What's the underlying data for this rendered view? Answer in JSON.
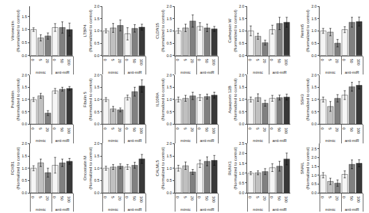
{
  "chart_data": [
    {
      "type": "bar",
      "ylabel": "Vitronectin\n(Normalized to control)",
      "categories": [
        "0",
        "5",
        "20",
        "0",
        "50",
        "100"
      ],
      "groups": [
        "mimic",
        "mimic",
        "mimic",
        "anti-miR",
        "anti-miR",
        "anti-miR"
      ],
      "values": [
        1.0,
        0.68,
        0.75,
        1.08,
        1.08,
        1.0
      ],
      "errors": [
        0.07,
        0.12,
        0.12,
        0.15,
        0.22,
        0.25
      ],
      "colors": [
        "#f5f5f5",
        "#c0c0c0",
        "#808080",
        "#f5f5f5",
        "#808080",
        "#383838"
      ],
      "ylim": [
        0,
        1.9
      ],
      "yticks": [
        {
          "value": 0,
          "label": "0.0"
        },
        0.5,
        {
          "value": 1,
          "label": "1.0"
        },
        1.5
      ],
      "grid": false
    },
    {
      "type": "bar",
      "ylabel": "LTBP4\n(Normalized to control)",
      "categories": [
        "0",
        "5",
        "20",
        "0",
        "50",
        "100"
      ],
      "groups": [
        "mimic",
        "mimic",
        "mimic",
        "anti-miR",
        "anti-miR",
        "anti-miR"
      ],
      "values": [
        1.0,
        1.12,
        1.22,
        0.88,
        1.1,
        1.15
      ],
      "errors": [
        0.08,
        0.18,
        0.22,
        0.25,
        0.15,
        0.12
      ],
      "colors": [
        "#f5f5f5",
        "#c0c0c0",
        "#808080",
        "#f5f5f5",
        "#808080",
        "#383838"
      ],
      "ylim": [
        0,
        2.0
      ],
      "yticks": [
        {
          "value": 0,
          "label": "0.0"
        },
        0.5,
        {
          "value": 1,
          "label": "1.0"
        },
        1.5,
        {
          "value": 2,
          "label": "2.0"
        }
      ],
      "grid": false
    },
    {
      "type": "bar",
      "ylabel": "CLDN15\n(Normalized to control)",
      "categories": [
        "0",
        "5",
        "20",
        "0",
        "50",
        "100"
      ],
      "groups": [
        "mimic",
        "mimic",
        "mimic",
        "anti-miR",
        "anti-miR",
        "anti-miR"
      ],
      "values": [
        1.0,
        1.12,
        1.4,
        1.18,
        1.12,
        1.08
      ],
      "errors": [
        0.1,
        0.15,
        0.25,
        0.15,
        0.15,
        0.1
      ],
      "colors": [
        "#f5f5f5",
        "#c0c0c0",
        "#808080",
        "#f5f5f5",
        "#808080",
        "#383838"
      ],
      "ylim": [
        0,
        2.0
      ],
      "yticks": [
        {
          "value": 0,
          "label": "0.0"
        },
        0.5,
        {
          "value": 1,
          "label": "1.0"
        },
        1.5,
        {
          "value": 2,
          "label": "2.0"
        }
      ],
      "grid": false
    },
    {
      "type": "bar",
      "ylabel": "Cathepsin W\n(Normalized to control)",
      "categories": [
        "0",
        "5",
        "20",
        "0",
        "50",
        "100"
      ],
      "groups": [
        "mimic",
        "mimic",
        "mimic",
        "anti-miR",
        "anti-miR",
        "anti-miR"
      ],
      "values": [
        1.0,
        0.78,
        0.52,
        1.05,
        1.3,
        1.35
      ],
      "errors": [
        0.2,
        0.12,
        0.1,
        0.18,
        0.25,
        0.2
      ],
      "colors": [
        "#f5f5f5",
        "#c0c0c0",
        "#808080",
        "#f5f5f5",
        "#808080",
        "#383838"
      ],
      "ylim": [
        0,
        2.0
      ],
      "yticks": [
        {
          "value": 0,
          "label": "0.0"
        },
        0.5,
        {
          "value": 1,
          "label": "1.0"
        },
        1.5,
        {
          "value": 2,
          "label": "2.0"
        }
      ],
      "grid": false
    },
    {
      "type": "bar",
      "ylabel": "Netrin5\n(Normalized to control)",
      "categories": [
        "0",
        "5",
        "20",
        "0",
        "50",
        "100"
      ],
      "groups": [
        "mimic",
        "mimic",
        "mimic",
        "anti-miR",
        "anti-miR",
        "anti-miR"
      ],
      "values": [
        1.0,
        0.95,
        0.5,
        1.05,
        1.35,
        1.38
      ],
      "errors": [
        0.1,
        0.15,
        0.15,
        0.12,
        0.2,
        0.18
      ],
      "colors": [
        "#f5f5f5",
        "#c0c0c0",
        "#808080",
        "#f5f5f5",
        "#808080",
        "#383838"
      ],
      "ylim": [
        0,
        2.0
      ],
      "yticks": [
        {
          "value": 0,
          "label": "0.0"
        },
        0.5,
        {
          "value": 1,
          "label": "1.0"
        },
        1.5,
        {
          "value": 2,
          "label": "2.0"
        }
      ],
      "grid": false
    },
    {
      "type": "bar",
      "ylabel": "Prohibitin\n(Normalized to control)",
      "categories": [
        "0",
        "5",
        "20",
        "0",
        "50",
        "100"
      ],
      "groups": [
        "mimic",
        "mimic",
        "mimic",
        "anti-miR",
        "anti-miR",
        "anti-miR"
      ],
      "values": [
        1.0,
        1.15,
        0.45,
        1.35,
        1.42,
        1.45
      ],
      "errors": [
        0.08,
        0.1,
        0.1,
        0.1,
        0.08,
        0.08
      ],
      "colors": [
        "#f5f5f5",
        "#c0c0c0",
        "#808080",
        "#f5f5f5",
        "#808080",
        "#383838"
      ],
      "ylim": [
        0,
        2.0
      ],
      "yticks": [
        {
          "value": 0,
          "label": "0.0"
        },
        0.5,
        {
          "value": 1,
          "label": "1.0"
        },
        1.5,
        {
          "value": 2,
          "label": "2.0"
        }
      ],
      "grid": false
    },
    {
      "type": "bar",
      "ylabel": "Fibulin 5\n(Normalized to control)",
      "categories": [
        "0",
        "5",
        "20",
        "0",
        "50",
        "100"
      ],
      "groups": [
        "mimic",
        "mimic",
        "mimic",
        "anti-miR",
        "anti-miR",
        "anti-miR"
      ],
      "values": [
        1.0,
        0.62,
        0.58,
        1.08,
        1.32,
        1.55
      ],
      "errors": [
        0.08,
        0.1,
        0.08,
        0.1,
        0.18,
        0.25
      ],
      "colors": [
        "#f5f5f5",
        "#c0c0c0",
        "#808080",
        "#f5f5f5",
        "#808080",
        "#383838"
      ],
      "ylim": [
        0,
        2.0
      ],
      "yticks": [
        {
          "value": 0,
          "label": "0.0"
        },
        0.5,
        {
          "value": 1,
          "label": "1.0"
        },
        1.5,
        {
          "value": 2,
          "label": "2.0"
        }
      ],
      "grid": false
    },
    {
      "type": "bar",
      "ylabel": "IL10RA\n(Normalized to control)",
      "categories": [
        "0",
        "5",
        "20",
        "0",
        "50",
        "100"
      ],
      "groups": [
        "mimic",
        "mimic",
        "mimic",
        "anti-miR",
        "anti-miR",
        "anti-miR"
      ],
      "values": [
        1.0,
        1.05,
        1.15,
        1.08,
        1.12,
        1.18
      ],
      "errors": [
        0.1,
        0.12,
        0.15,
        0.12,
        0.1,
        0.12
      ],
      "colors": [
        "#f5f5f5",
        "#c0c0c0",
        "#808080",
        "#f5f5f5",
        "#808080",
        "#383838"
      ],
      "ylim": [
        0,
        2.0
      ],
      "yticks": [
        {
          "value": 0,
          "label": "0.0"
        },
        0.5,
        {
          "value": 1,
          "label": "1.0"
        },
        1.5,
        {
          "value": 2,
          "label": "2.0"
        }
      ],
      "grid": false
    },
    {
      "type": "bar",
      "ylabel": "Aquaporin 12B\n(Normalized to control)",
      "categories": [
        "0",
        "5",
        "20",
        "0",
        "50",
        "100"
      ],
      "groups": [
        "mimic",
        "mimic",
        "mimic",
        "anti-miR",
        "anti-miR",
        "anti-miR"
      ],
      "values": [
        1.0,
        1.08,
        0.85,
        1.05,
        1.08,
        1.1
      ],
      "errors": [
        0.1,
        0.15,
        0.12,
        0.12,
        0.1,
        0.12
      ],
      "colors": [
        "#f5f5f5",
        "#c0c0c0",
        "#808080",
        "#f5f5f5",
        "#808080",
        "#383838"
      ],
      "ylim": [
        0,
        2.0
      ],
      "yticks": [
        {
          "value": 0,
          "label": "0.0"
        },
        0.5,
        {
          "value": 1,
          "label": "1.0"
        },
        1.5,
        {
          "value": 2,
          "label": "2.0"
        }
      ],
      "grid": false
    },
    {
      "type": "bar",
      "ylabel": "SSH3\n(Normalized to control)",
      "categories": [
        "0",
        "5",
        "20",
        "0",
        "50",
        "100"
      ],
      "groups": [
        "mimic",
        "mimic",
        "mimic",
        "anti-miR",
        "anti-miR",
        "anti-miR"
      ],
      "values": [
        1.0,
        0.72,
        1.05,
        1.18,
        1.52,
        1.58
      ],
      "errors": [
        0.1,
        0.2,
        0.15,
        0.18,
        0.18,
        0.15
      ],
      "colors": [
        "#f5f5f5",
        "#c0c0c0",
        "#808080",
        "#f5f5f5",
        "#808080",
        "#383838"
      ],
      "ylim": [
        0,
        2.0
      ],
      "yticks": [
        {
          "value": 0,
          "label": "0.0"
        },
        0.5,
        {
          "value": 1,
          "label": "1.0"
        },
        1.5,
        {
          "value": 2,
          "label": "2.0"
        }
      ],
      "grid": false
    },
    {
      "type": "bar",
      "ylabel": "FOXB1\n(Normalized to control)",
      "categories": [
        "0",
        "5",
        "20",
        "0",
        "50",
        "100"
      ],
      "groups": [
        "mimic",
        "mimic",
        "mimic",
        "anti-miR",
        "anti-miR",
        "anti-miR"
      ],
      "values": [
        1.0,
        1.22,
        0.82,
        1.12,
        1.22,
        1.28
      ],
      "errors": [
        0.1,
        0.15,
        0.18,
        0.32,
        0.15,
        0.12
      ],
      "colors": [
        "#f5f5f5",
        "#c0c0c0",
        "#808080",
        "#f5f5f5",
        "#808080",
        "#383838"
      ],
      "ylim": [
        0,
        2.0
      ],
      "yticks": [
        {
          "value": 0,
          "label": "0.0"
        },
        0.5,
        {
          "value": 1,
          "label": "1.0"
        },
        1.5,
        {
          "value": 2,
          "label": "2.0"
        }
      ],
      "grid": false
    },
    {
      "type": "bar",
      "ylabel": "Oncostatin M\n(Normalized to control)",
      "categories": [
        "0",
        "5",
        "20",
        "0",
        "50",
        "100"
      ],
      "groups": [
        "mimic",
        "mimic",
        "mimic",
        "anti-miR",
        "anti-miR",
        "anti-miR"
      ],
      "values": [
        1.0,
        1.05,
        1.08,
        1.05,
        1.12,
        1.38
      ],
      "errors": [
        0.08,
        0.1,
        0.1,
        0.1,
        0.12,
        0.18
      ],
      "colors": [
        "#f5f5f5",
        "#c0c0c0",
        "#808080",
        "#f5f5f5",
        "#808080",
        "#383838"
      ],
      "ylim": [
        0,
        2.0
      ],
      "yticks": [
        {
          "value": 0,
          "label": "0.0"
        },
        0.5,
        {
          "value": 1,
          "label": "1.0"
        },
        1.5,
        {
          "value": 2,
          "label": "2.0"
        }
      ],
      "grid": false
    },
    {
      "type": "bar",
      "ylabel": "CALML5\n(Normalized to control)",
      "categories": [
        "0",
        "5",
        "20",
        "0",
        "50",
        "100"
      ],
      "groups": [
        "mimic",
        "mimic",
        "mimic",
        "anti-miR",
        "anti-miR",
        "anti-miR"
      ],
      "values": [
        1.0,
        1.1,
        0.85,
        1.18,
        1.28,
        1.32
      ],
      "errors": [
        0.12,
        0.15,
        0.1,
        0.15,
        0.18,
        0.2
      ],
      "colors": [
        "#f5f5f5",
        "#c0c0c0",
        "#808080",
        "#f5f5f5",
        "#808080",
        "#383838"
      ],
      "ylim": [
        0,
        2.0
      ],
      "yticks": [
        {
          "value": 0,
          "label": "0.0"
        },
        0.5,
        {
          "value": 1,
          "label": "1.0"
        },
        1.5,
        {
          "value": 2,
          "label": "2.0"
        }
      ],
      "grid": false
    },
    {
      "type": "bar",
      "ylabel": "RUNX1\n(Normalized to control)",
      "categories": [
        "0",
        "5",
        "20",
        "0",
        "50",
        "100"
      ],
      "groups": [
        "mimic",
        "mimic",
        "mimic",
        "anti-miR",
        "anti-miR",
        "anti-miR"
      ],
      "values": [
        1.0,
        1.02,
        1.08,
        1.28,
        1.35,
        1.72
      ],
      "errors": [
        0.08,
        0.1,
        0.15,
        0.2,
        0.25,
        0.3
      ],
      "colors": [
        "#f5f5f5",
        "#c0c0c0",
        "#808080",
        "#f5f5f5",
        "#808080",
        "#383838"
      ],
      "ylim": [
        0,
        2.5
      ],
      "yticks": [
        {
          "value": 0,
          "label": "0.0"
        },
        0.5,
        {
          "value": 1,
          "label": "1.0"
        },
        1.5,
        {
          "value": 2,
          "label": "2.0"
        },
        2.5
      ],
      "grid": false
    },
    {
      "type": "bar",
      "ylabel": "SNAIL\n(Normalized to control)",
      "categories": [
        "0",
        "5",
        "20",
        "0",
        "50",
        "100"
      ],
      "groups": [
        "mimic",
        "mimic",
        "mimic",
        "anti-miR",
        "anti-miR",
        "anti-miR"
      ],
      "values": [
        1.0,
        0.65,
        0.55,
        1.05,
        1.62,
        1.68
      ],
      "errors": [
        0.15,
        0.18,
        0.18,
        0.2,
        0.25,
        0.2
      ],
      "colors": [
        "#f5f5f5",
        "#c0c0c0",
        "#808080",
        "#f5f5f5",
        "#808080",
        "#383838"
      ],
      "ylim": [
        0,
        2.8
      ],
      "yticks": [
        {
          "value": 0,
          "label": "0.0"
        },
        0.5,
        {
          "value": 1,
          "label": "1.0"
        },
        1.5,
        {
          "value": 2,
          "label": "2.0"
        },
        2.5
      ],
      "grid": false
    }
  ]
}
